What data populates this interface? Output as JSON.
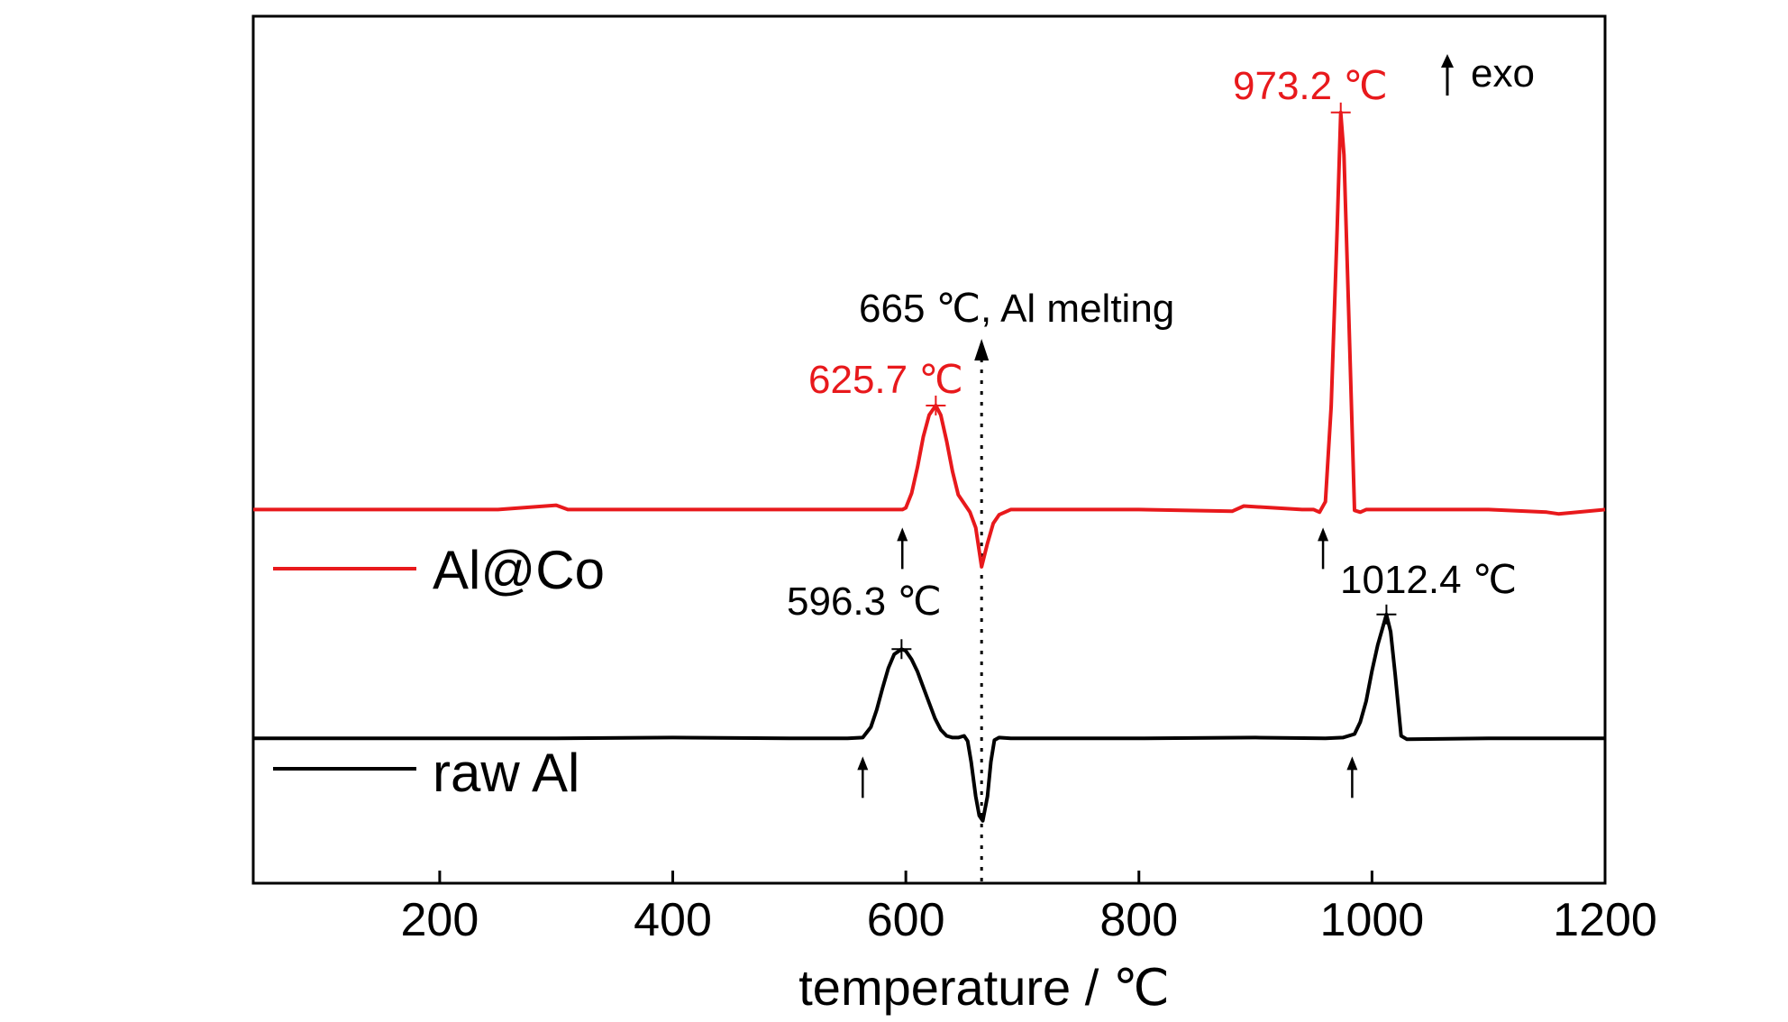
{
  "chart_data": {
    "type": "line",
    "title": "",
    "xlabel": "temperature / ℃",
    "ylabel": "",
    "xlim": [
      40,
      1200
    ],
    "ylim": [
      0,
      1
    ],
    "x_ticks": [
      200,
      400,
      600,
      800,
      1000,
      1200
    ],
    "x_tick_labels": [
      "200",
      "400",
      "600",
      "800",
      "1000",
      "1200"
    ],
    "y_ticks_shown": false,
    "grid": false,
    "legend_position": "left-middle",
    "series": [
      {
        "name": "Al@Co",
        "color": "#e8191c",
        "baseline": 0.431,
        "x": [
          40,
          250,
          300,
          310,
          500,
          560,
          597,
          600,
          605,
          610,
          615,
          620,
          625.7,
          630,
          635,
          640,
          645,
          650,
          655,
          660,
          665,
          670,
          675,
          680,
          690,
          700,
          800,
          880,
          890,
          940,
          950,
          955,
          960,
          965,
          970,
          973.2,
          976,
          980,
          985,
          990,
          995,
          1000,
          1100,
          1150,
          1160,
          1200
        ],
        "y": [
          0.431,
          0.431,
          0.436,
          0.431,
          0.431,
          0.431,
          0.431,
          0.433,
          0.45,
          0.48,
          0.515,
          0.54,
          0.551,
          0.54,
          0.51,
          0.475,
          0.448,
          0.438,
          0.428,
          0.41,
          0.365,
          0.392,
          0.415,
          0.425,
          0.431,
          0.431,
          0.431,
          0.429,
          0.435,
          0.431,
          0.431,
          0.428,
          0.44,
          0.55,
          0.75,
          0.889,
          0.84,
          0.66,
          0.43,
          0.428,
          0.431,
          0.431,
          0.431,
          0.428,
          0.426,
          0.431
        ]
      },
      {
        "name": "raw Al",
        "color": "#000000",
        "baseline": 0.167,
        "x": [
          40,
          300,
          400,
          500,
          550,
          563,
          570,
          575,
          580,
          585,
          590,
          596.3,
          600,
          605,
          610,
          615,
          620,
          625,
          630,
          635,
          640,
          645,
          650,
          653,
          656,
          660,
          663,
          666,
          670,
          673,
          676,
          680,
          690,
          800,
          900,
          960,
          975,
          985,
          990,
          995,
          1000,
          1005,
          1012.4,
          1016,
          1020,
          1025,
          1030,
          1100,
          1200
        ],
        "y": [
          0.167,
          0.167,
          0.168,
          0.167,
          0.167,
          0.168,
          0.18,
          0.2,
          0.225,
          0.248,
          0.264,
          0.27,
          0.268,
          0.258,
          0.244,
          0.226,
          0.208,
          0.19,
          0.177,
          0.17,
          0.168,
          0.168,
          0.17,
          0.164,
          0.14,
          0.1,
          0.078,
          0.072,
          0.1,
          0.14,
          0.165,
          0.168,
          0.167,
          0.167,
          0.168,
          0.167,
          0.168,
          0.172,
          0.186,
          0.21,
          0.245,
          0.275,
          0.31,
          0.29,
          0.24,
          0.17,
          0.166,
          0.167,
          0.167
        ]
      }
    ],
    "annotations": [
      {
        "text": "973.2 ℃",
        "x": 973.2,
        "y": 0.889,
        "color": "#e8191c"
      },
      {
        "text": "625.7 ℃",
        "x": 625.7,
        "y": 0.551,
        "color": "#e8191c"
      },
      {
        "text": "596.3 ℃",
        "x": 596.3,
        "y": 0.27,
        "color": "#000000"
      },
      {
        "text": "1012.4 ℃",
        "x": 1012.4,
        "y": 0.31,
        "color": "#000000"
      },
      {
        "text": "665 ℃, Al melting",
        "x": 665,
        "color": "#000000"
      },
      {
        "text": "exo",
        "color": "#000000"
      }
    ],
    "onset_arrows": [
      {
        "series": "Al@Co",
        "x": 597
      },
      {
        "series": "Al@Co",
        "x": 958
      },
      {
        "series": "raw Al",
        "x": 563
      },
      {
        "series": "raw Al",
        "x": 983
      }
    ],
    "melting_line_x": 665
  }
}
